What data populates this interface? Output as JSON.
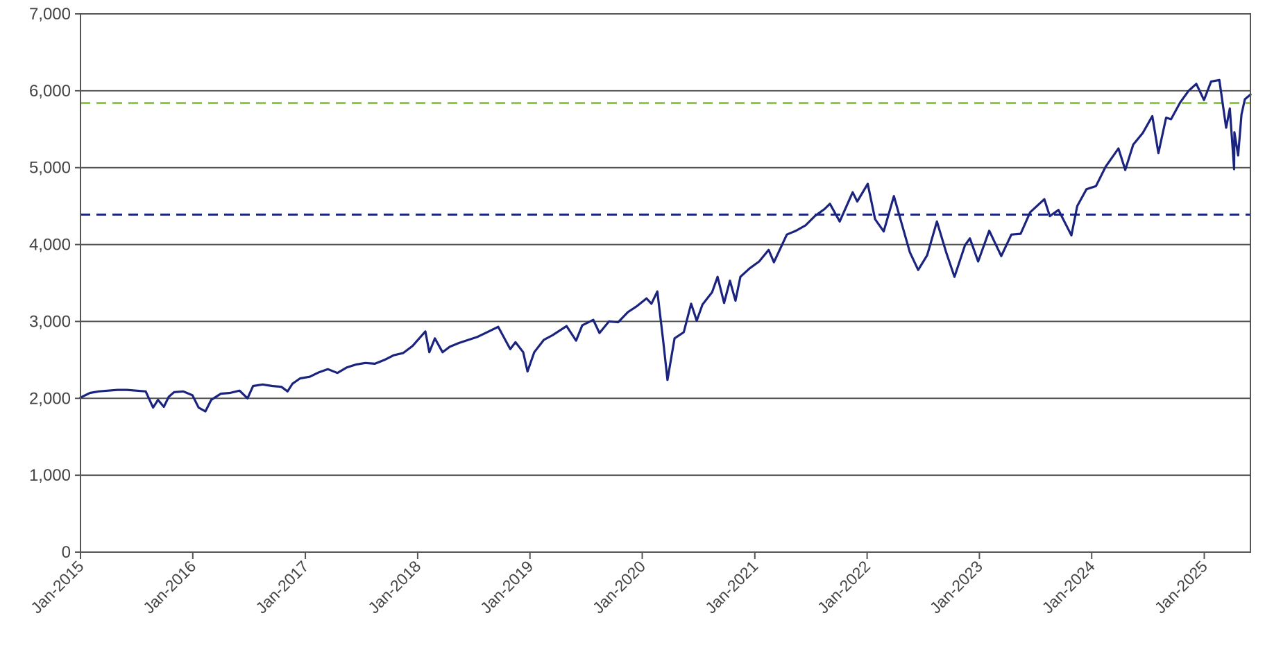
{
  "chart_data": {
    "type": "line",
    "title": "",
    "xlabel": "",
    "ylabel": "",
    "ylim": [
      0,
      7000
    ],
    "yticks": [
      0,
      1000,
      2000,
      3000,
      4000,
      5000,
      6000,
      7000
    ],
    "ytick_labels": [
      "0",
      "1,000",
      "2,000",
      "3,000",
      "4,000",
      "5,000",
      "6,000",
      "7,000"
    ],
    "xlim": [
      "2015-01-01",
      "2025-05-31"
    ],
    "xticks": [
      "2015-01-01",
      "2016-01-01",
      "2017-01-01",
      "2018-01-01",
      "2019-01-01",
      "2020-01-01",
      "2021-01-01",
      "2022-01-01",
      "2023-01-01",
      "2024-01-01",
      "2025-01-01"
    ],
    "xtick_labels": [
      "Jan-2015",
      "Jan-2016",
      "Jan-2017",
      "Jan-2018",
      "Jan-2019",
      "Jan-2020",
      "Jan-2021",
      "Jan-2022",
      "Jan-2023",
      "Jan-2024",
      "Jan-2025"
    ],
    "grid": "horizontal",
    "legend": "none",
    "colors": {
      "series": "#1a237e",
      "reference_upper": "#8dc63f",
      "reference_lower": "#1a237e",
      "grid": "#555555",
      "axis_text": "#444444"
    },
    "reference_lines": [
      {
        "y": 5840,
        "style": "dashed",
        "color": "#8dc63f"
      },
      {
        "y": 4390,
        "style": "dashed",
        "color": "#1a237e"
      }
    ],
    "series": [
      {
        "points": [
          [
            "2015-01-01",
            2010
          ],
          [
            "2015-02-01",
            2070
          ],
          [
            "2015-03-01",
            2090
          ],
          [
            "2015-04-01",
            2100
          ],
          [
            "2015-05-01",
            2110
          ],
          [
            "2015-06-01",
            2110
          ],
          [
            "2015-07-01",
            2100
          ],
          [
            "2015-08-01",
            2090
          ],
          [
            "2015-08-25",
            1880
          ],
          [
            "2015-09-10",
            1980
          ],
          [
            "2015-09-29",
            1890
          ],
          [
            "2015-10-15",
            2020
          ],
          [
            "2015-11-01",
            2080
          ],
          [
            "2015-12-01",
            2090
          ],
          [
            "2015-12-31",
            2040
          ],
          [
            "2016-01-20",
            1880
          ],
          [
            "2016-02-11",
            1830
          ],
          [
            "2016-03-01",
            1980
          ],
          [
            "2016-04-01",
            2060
          ],
          [
            "2016-05-01",
            2070
          ],
          [
            "2016-06-01",
            2100
          ],
          [
            "2016-06-27",
            2000
          ],
          [
            "2016-07-15",
            2160
          ],
          [
            "2016-08-15",
            2180
          ],
          [
            "2016-09-15",
            2160
          ],
          [
            "2016-10-15",
            2150
          ],
          [
            "2016-11-04",
            2090
          ],
          [
            "2016-11-20",
            2190
          ],
          [
            "2016-12-15",
            2260
          ],
          [
            "2017-01-15",
            2280
          ],
          [
            "2017-02-15",
            2340
          ],
          [
            "2017-03-15",
            2380
          ],
          [
            "2017-04-15",
            2330
          ],
          [
            "2017-05-15",
            2400
          ],
          [
            "2017-06-15",
            2440
          ],
          [
            "2017-07-15",
            2460
          ],
          [
            "2017-08-15",
            2450
          ],
          [
            "2017-09-15",
            2500
          ],
          [
            "2017-10-15",
            2560
          ],
          [
            "2017-11-15",
            2590
          ],
          [
            "2017-12-15",
            2680
          ],
          [
            "2018-01-26",
            2870
          ],
          [
            "2018-02-08",
            2600
          ],
          [
            "2018-02-26",
            2780
          ],
          [
            "2018-03-23",
            2600
          ],
          [
            "2018-04-15",
            2670
          ],
          [
            "2018-05-15",
            2720
          ],
          [
            "2018-06-15",
            2760
          ],
          [
            "2018-07-15",
            2800
          ],
          [
            "2018-08-15",
            2860
          ],
          [
            "2018-09-20",
            2930
          ],
          [
            "2018-10-10",
            2780
          ],
          [
            "2018-10-29",
            2640
          ],
          [
            "2018-11-15",
            2730
          ],
          [
            "2018-12-10",
            2600
          ],
          [
            "2018-12-24",
            2350
          ],
          [
            "2019-01-15",
            2600
          ],
          [
            "2019-02-15",
            2760
          ],
          [
            "2019-03-15",
            2820
          ],
          [
            "2019-04-30",
            2940
          ],
          [
            "2019-05-31",
            2750
          ],
          [
            "2019-06-20",
            2950
          ],
          [
            "2019-07-26",
            3020
          ],
          [
            "2019-08-15",
            2850
          ],
          [
            "2019-09-15",
            3000
          ],
          [
            "2019-10-15",
            2990
          ],
          [
            "2019-11-15",
            3120
          ],
          [
            "2019-12-15",
            3200
          ],
          [
            "2020-01-15",
            3300
          ],
          [
            "2020-01-31",
            3230
          ],
          [
            "2020-02-19",
            3390
          ],
          [
            "2020-03-09",
            2750
          ],
          [
            "2020-03-23",
            2240
          ],
          [
            "2020-04-15",
            2780
          ],
          [
            "2020-05-15",
            2860
          ],
          [
            "2020-06-08",
            3230
          ],
          [
            "2020-06-26",
            3010
          ],
          [
            "2020-07-15",
            3220
          ],
          [
            "2020-08-15",
            3380
          ],
          [
            "2020-09-02",
            3580
          ],
          [
            "2020-09-23",
            3240
          ],
          [
            "2020-10-12",
            3530
          ],
          [
            "2020-10-30",
            3270
          ],
          [
            "2020-11-15",
            3580
          ],
          [
            "2020-12-15",
            3690
          ],
          [
            "2021-01-15",
            3780
          ],
          [
            "2021-02-15",
            3930
          ],
          [
            "2021-03-04",
            3770
          ],
          [
            "2021-04-15",
            4130
          ],
          [
            "2021-05-15",
            4180
          ],
          [
            "2021-06-15",
            4250
          ],
          [
            "2021-07-15",
            4370
          ],
          [
            "2021-08-15",
            4460
          ],
          [
            "2021-09-02",
            4530
          ],
          [
            "2021-10-04",
            4300
          ],
          [
            "2021-11-15",
            4680
          ],
          [
            "2021-11-30",
            4560
          ],
          [
            "2022-01-03",
            4790
          ],
          [
            "2022-01-27",
            4330
          ],
          [
            "2022-02-24",
            4170
          ],
          [
            "2022-03-29",
            4630
          ],
          [
            "2022-04-15",
            4390
          ],
          [
            "2022-05-20",
            3900
          ],
          [
            "2022-06-16",
            3670
          ],
          [
            "2022-07-15",
            3860
          ],
          [
            "2022-08-16",
            4300
          ],
          [
            "2022-09-15",
            3900
          ],
          [
            "2022-10-12",
            3580
          ],
          [
            "2022-11-15",
            3990
          ],
          [
            "2022-12-01",
            4080
          ],
          [
            "2022-12-28",
            3780
          ],
          [
            "2023-02-02",
            4180
          ],
          [
            "2023-03-13",
            3850
          ],
          [
            "2023-04-15",
            4130
          ],
          [
            "2023-05-15",
            4140
          ],
          [
            "2023-06-15",
            4420
          ],
          [
            "2023-07-31",
            4590
          ],
          [
            "2023-08-18",
            4370
          ],
          [
            "2023-09-15",
            4450
          ],
          [
            "2023-10-27",
            4120
          ],
          [
            "2023-11-15",
            4500
          ],
          [
            "2023-12-15",
            4720
          ],
          [
            "2024-01-15",
            4760
          ],
          [
            "2024-02-15",
            5010
          ],
          [
            "2024-03-28",
            5250
          ],
          [
            "2024-04-19",
            4970
          ],
          [
            "2024-05-15",
            5300
          ],
          [
            "2024-06-15",
            5450
          ],
          [
            "2024-07-16",
            5670
          ],
          [
            "2024-08-05",
            5190
          ],
          [
            "2024-08-30",
            5650
          ],
          [
            "2024-09-15",
            5630
          ],
          [
            "2024-10-15",
            5850
          ],
          [
            "2024-11-11",
            6000
          ],
          [
            "2024-12-06",
            6090
          ],
          [
            "2024-12-31",
            5880
          ],
          [
            "2025-01-23",
            6120
          ],
          [
            "2025-02-19",
            6140
          ],
          [
            "2025-03-13",
            5520
          ],
          [
            "2025-03-25",
            5770
          ],
          [
            "2025-04-08",
            4980
          ],
          [
            "2025-04-09",
            5460
          ],
          [
            "2025-04-21",
            5160
          ],
          [
            "2025-05-02",
            5690
          ],
          [
            "2025-05-13",
            5890
          ],
          [
            "2025-05-31",
            5950
          ]
        ]
      }
    ]
  }
}
